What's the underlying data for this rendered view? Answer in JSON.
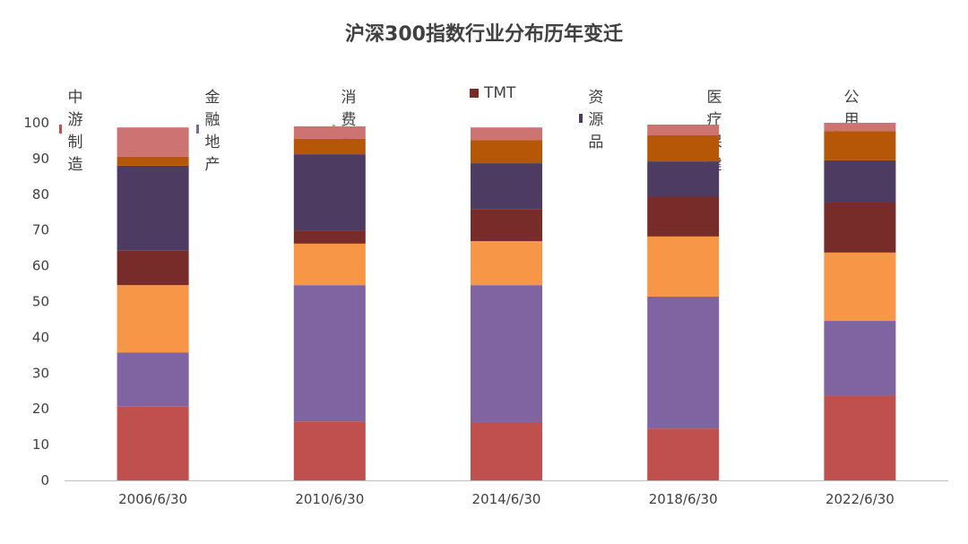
{
  "chart_data": {
    "type": "bar",
    "stacked": true,
    "title": "沪深300指数行业分布历年变迁",
    "xlabel": "",
    "ylabel": "",
    "ylim": [
      0,
      100
    ],
    "yticks": [
      0,
      10,
      20,
      30,
      40,
      50,
      60,
      70,
      80,
      90,
      100
    ],
    "grid": false,
    "legend_position": "top",
    "categories": [
      "2006/6/30",
      "2010/6/30",
      "2014/6/30",
      "2018/6/30",
      "2022/6/30"
    ],
    "series": [
      {
        "name": "中游制造",
        "color": "#c0504d",
        "values": [
          20.6,
          16.5,
          16.3,
          14.5,
          23.8
        ]
      },
      {
        "name": "金融地产",
        "color": "#8064a2",
        "values": [
          15.2,
          38.1,
          38.3,
          36.9,
          20.8
        ]
      },
      {
        "name": "消费服务",
        "color": "#f79646",
        "values": [
          18.8,
          11.6,
          12.3,
          16.8,
          19.1
        ]
      },
      {
        "name": "TMT",
        "color": "#772c2a",
        "values": [
          9.6,
          3.7,
          9.0,
          11.0,
          14.0
        ]
      },
      {
        "name": "资源品",
        "color": "#4d3b62",
        "values": [
          23.8,
          21.3,
          12.8,
          10.0,
          11.8
        ]
      },
      {
        "name": "医疗保健",
        "color": "#b65708",
        "values": [
          2.5,
          4.3,
          6.5,
          7.3,
          8.2
        ]
      },
      {
        "name": "公用事业",
        "color": "#cd7371",
        "values": [
          8.2,
          3.5,
          3.5,
          3.0,
          2.3
        ]
      }
    ]
  }
}
